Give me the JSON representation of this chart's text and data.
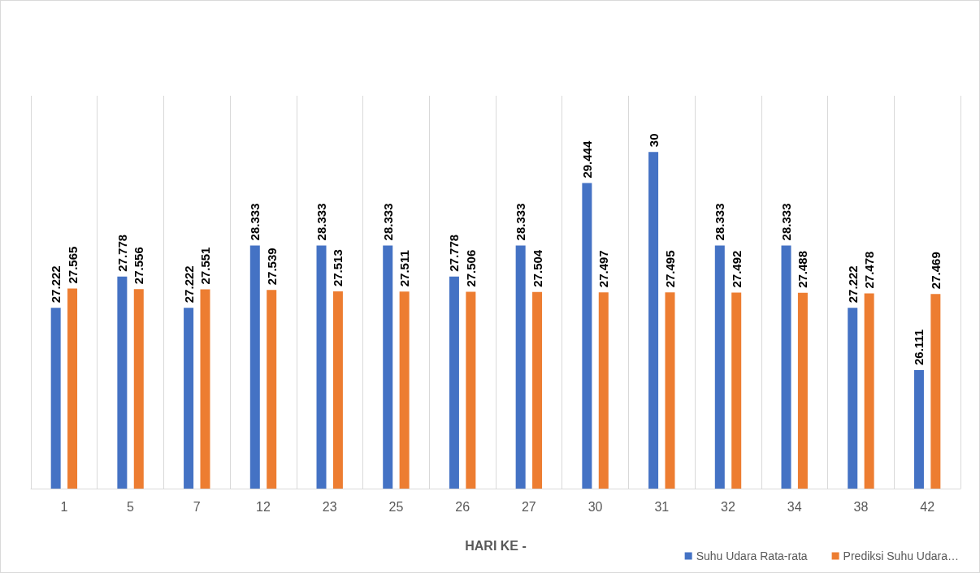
{
  "chart_data": {
    "type": "bar",
    "xlabel": "HARI KE -",
    "categories": [
      "1",
      "5",
      "7",
      "12",
      "23",
      "25",
      "26",
      "27",
      "30",
      "31",
      "32",
      "34",
      "38",
      "42"
    ],
    "series": [
      {
        "name": "Suhu Udara Rata-rata",
        "color": "#4472c4",
        "values": [
          27.222,
          27.778,
          27.222,
          28.333,
          28.333,
          28.333,
          27.778,
          28.333,
          29.444,
          30,
          28.333,
          28.333,
          27.222,
          26.111
        ]
      },
      {
        "name": "Prediksi Suhu Udara…",
        "color": "#ed7d31",
        "values": [
          27.565,
          27.556,
          27.551,
          27.539,
          27.513,
          27.511,
          27.506,
          27.504,
          27.497,
          27.495,
          27.492,
          27.488,
          27.478,
          27.469
        ]
      }
    ],
    "ylim": [
      24,
      31
    ],
    "data_labels": true,
    "grid": "x",
    "legend": "bottom right"
  }
}
